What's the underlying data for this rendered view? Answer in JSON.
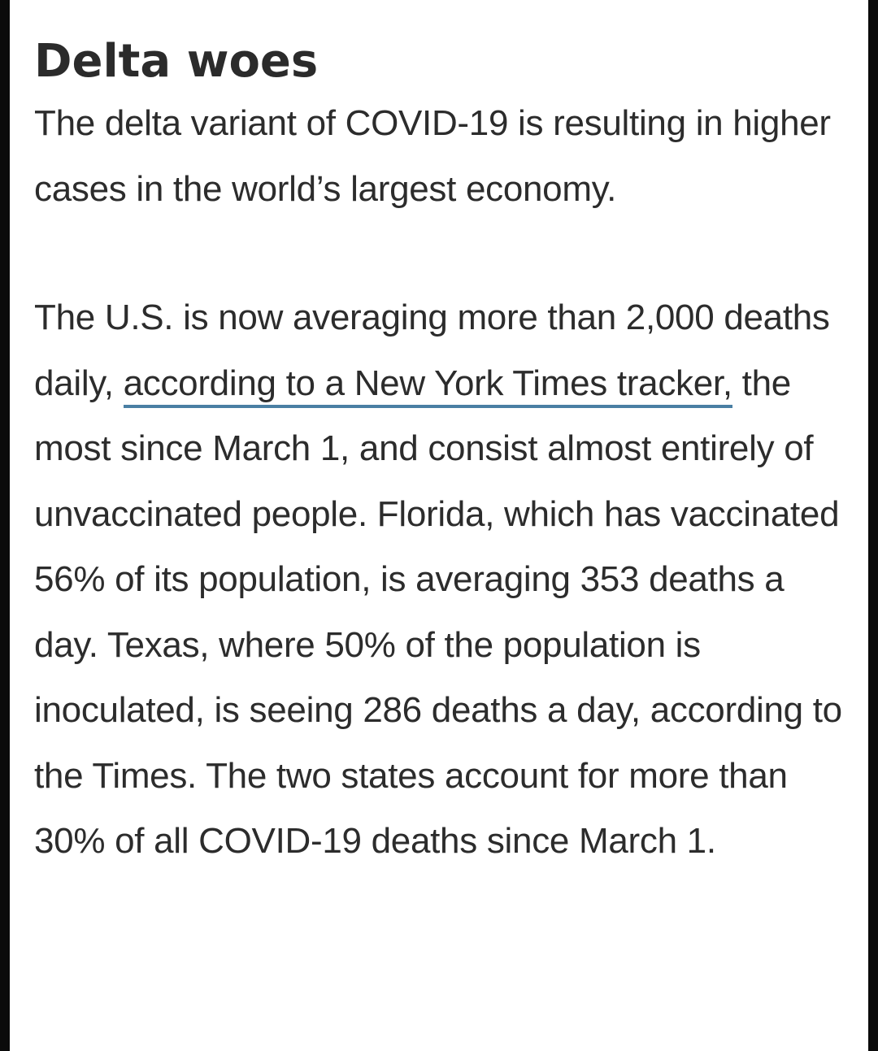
{
  "article": {
    "heading": "Delta woes",
    "intro": "The delta variant of COVID-19 is resulting in higher cases in the world’s largest economy.",
    "body_before_link": "The U.S. is now averaging more than 2,000 deaths daily, ",
    "link_text": "according to a New York Times tracker,",
    "body_after_link": " the most since March 1, and consist almost entirely of unvaccinated people. Florida, which has vaccinated 56% of its population, is averaging 353 deaths a day. Texas, where 50% of the population is inoculated, is seeing 286 deaths a day, according to the Times. The two states account for more than 30% of all COVID-19 deaths since March 1."
  },
  "colors": {
    "link_underline": "#4a7fa3",
    "text": "#2c2c2c",
    "background": "#ffffff"
  }
}
